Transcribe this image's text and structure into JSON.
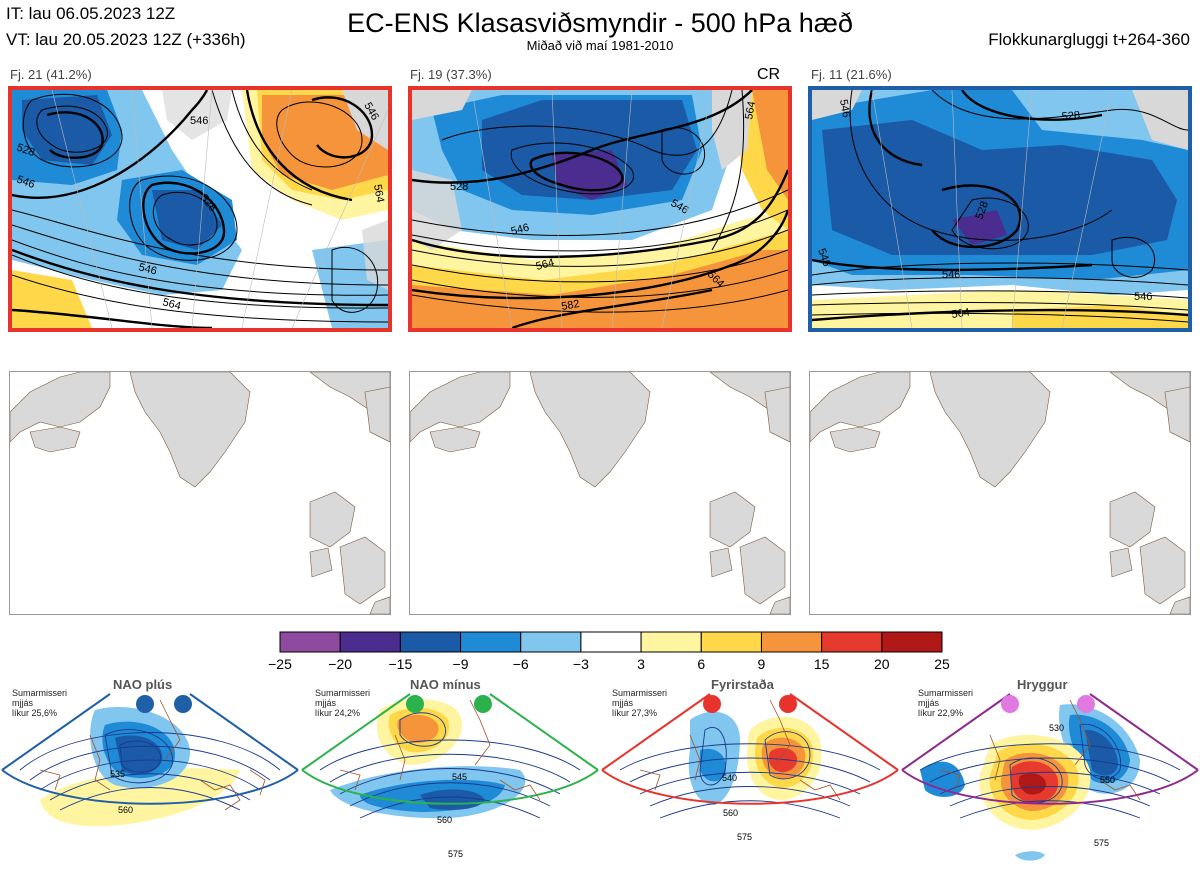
{
  "header": {
    "init_time": "IT: lau 06.05.2023 12Z",
    "valid_time": "VT: lau 20.05.2023 12Z  (+336h)",
    "title": "EC-ENS Klasasviðsmyndir - 500 hPa hæð",
    "subtitle": "Miðað við maí 1981-2010",
    "window": "Flokkunargluggi t+264-360"
  },
  "clusters": [
    {
      "label": "Fj. 21 (41.2%)",
      "border_color": "#e8322c",
      "tag": "",
      "contours": [
        "546",
        "528",
        "546",
        "564",
        "528",
        "546",
        "546",
        "564"
      ]
    },
    {
      "label": "Fj. 19 (37.3%)",
      "border_color": "#e8322c",
      "tag": "CR",
      "contours": [
        "528",
        "546",
        "564",
        "582",
        "546",
        "564",
        "564"
      ]
    },
    {
      "label": "Fj. 11 (21.6%)",
      "border_color": "#1f5fa8",
      "tag": "",
      "contours": [
        "528",
        "546",
        "546",
        "546",
        "564",
        "546",
        "528"
      ]
    }
  ],
  "colorbar": {
    "ticks": [
      "−25",
      "−20",
      "−15",
      "−9",
      "−6",
      "−3",
      "3",
      "6",
      "9",
      "15",
      "20",
      "25"
    ],
    "colors": [
      "#8e4a9e",
      "#4b2d8f",
      "#1a5aa6",
      "#1f8ad6",
      "#80c6ee",
      "#ffffff",
      "#fff5a0",
      "#ffd84a",
      "#f5943a",
      "#e63a2e",
      "#b01818"
    ]
  },
  "regimes": [
    {
      "name": "NAO plús",
      "text": [
        "Sumarmisseri",
        "mjjás",
        "líkur 25,6%"
      ],
      "color": "#1f5fa8",
      "contours": [
        "535",
        "560"
      ]
    },
    {
      "name": "NAO mínus",
      "text": [
        "Sumarmisseri",
        "mjjás",
        "líkur 24,2%"
      ],
      "color": "#2bb24c",
      "contours": [
        "545",
        "560",
        "575"
      ]
    },
    {
      "name": "Fyrirstaða",
      "text": [
        "Sumarmisseri",
        "mjjás",
        "líkur 27,3%"
      ],
      "color": "#e8322c",
      "contours": [
        "540",
        "560",
        "575"
      ]
    },
    {
      "name": "Hryggur",
      "text": [
        "Sumarmisseri",
        "mjjás",
        "líkur 22,9%"
      ],
      "color": "#e07ae0",
      "contours": [
        "530",
        "550",
        "575"
      ]
    }
  ]
}
